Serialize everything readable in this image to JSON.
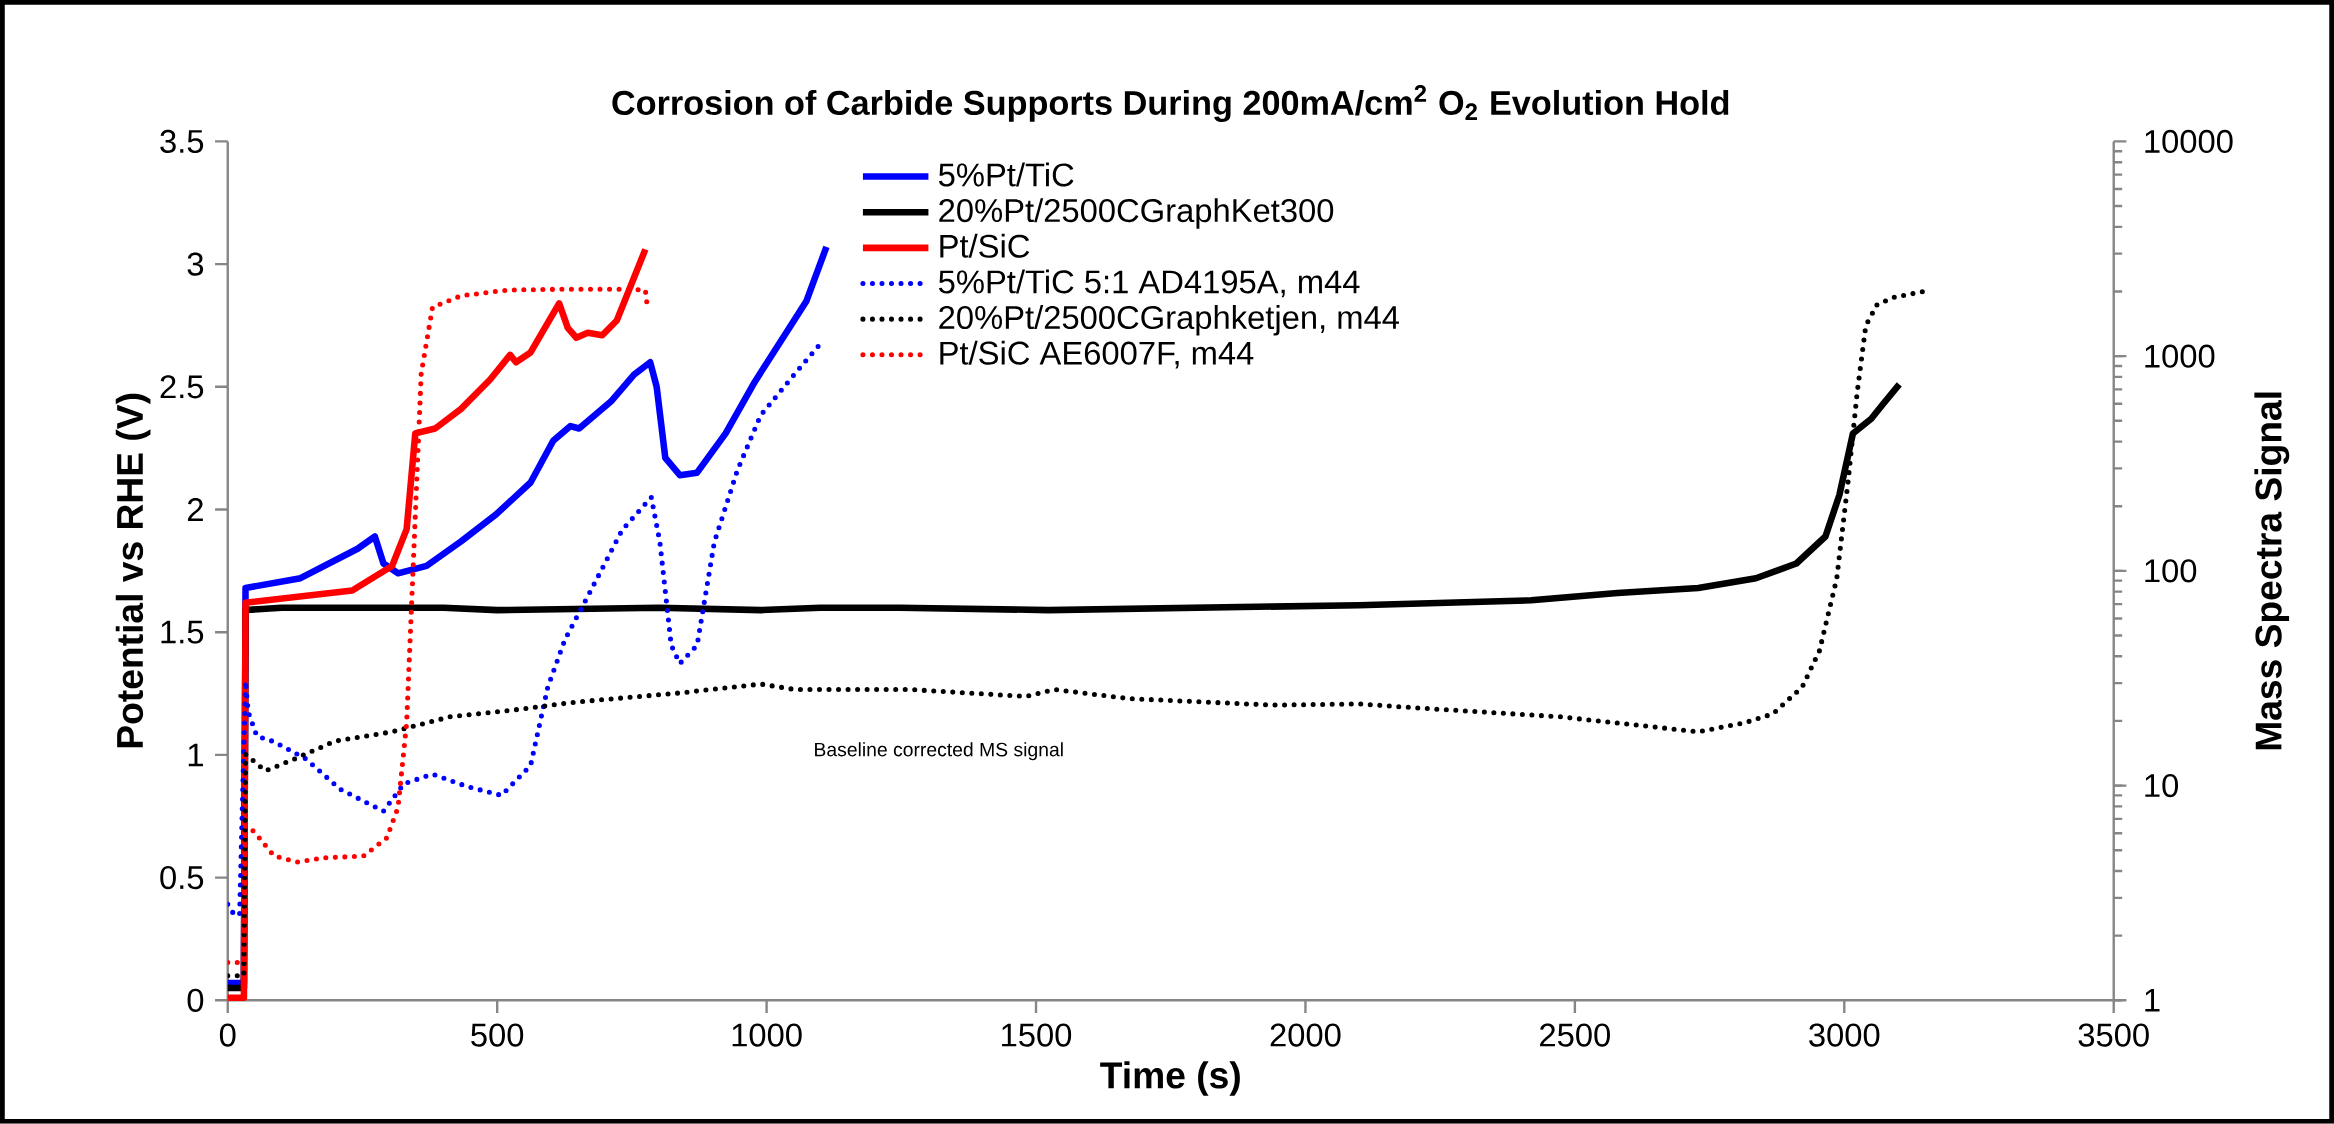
{
  "chart_data": {
    "type": "line",
    "title": "Corrosion of Carbide Supports During 200mA/cm$^{2}$ O$_{2}$ Evolution Hold",
    "xlabel": "Time (s)",
    "ylabel": "Potential vs RHE (V)",
    "y2label": "Mass Spectra Signal",
    "annotations": [
      "Baseline corrected MS signal"
    ],
    "xlim": [
      0,
      3500
    ],
    "xticks": [
      0,
      500,
      1000,
      1500,
      2000,
      2500,
      3000,
      3500
    ],
    "ylim": [
      0,
      3.5
    ],
    "yticks": [
      0,
      0.5,
      1,
      1.5,
      2,
      2.5,
      3,
      3.5
    ],
    "y2lim": [
      1,
      10000
    ],
    "y2ticks": [
      1,
      10,
      100,
      1000,
      10000
    ],
    "log": "y2",
    "legend": "top",
    "grid": false,
    "series": [
      {
        "name": "5%Pt/TiC",
        "color": "#0000ff",
        "line_style": "solid",
        "x": [
          0,
          30,
          33,
          135,
          241,
          273,
          289,
          316,
          369,
          433,
          498,
          562,
          604,
          636,
          652,
          711,
          754,
          784,
          796,
          812,
          839,
          871,
          924,
          978,
          1042,
          1074,
          1111
        ],
        "values": [
          0.07,
          0.07,
          1.68,
          1.72,
          1.84,
          1.89,
          1.78,
          1.74,
          1.77,
          1.87,
          1.98,
          2.11,
          2.28,
          2.34,
          2.33,
          2.44,
          2.55,
          2.6,
          2.5,
          2.21,
          2.14,
          2.15,
          2.31,
          2.52,
          2.74,
          2.85,
          3.07
        ]
      },
      {
        "name": "20%Pt/2500CGraphKet300",
        "color": "#000000",
        "line_style": "solid",
        "x": [
          0,
          30,
          33,
          100,
          400,
          500,
          800,
          990,
          1100,
          1246,
          1523,
          2099,
          2419,
          2579,
          2729,
          2836,
          2911,
          2965,
          2991,
          3016,
          3050,
          3072,
          3102
        ],
        "values": [
          0.05,
          0.05,
          1.59,
          1.6,
          1.6,
          1.59,
          1.6,
          1.59,
          1.6,
          1.6,
          1.59,
          1.61,
          1.63,
          1.66,
          1.68,
          1.72,
          1.78,
          1.89,
          2.06,
          2.31,
          2.37,
          2.43,
          2.51
        ]
      },
      {
        "name": "Pt/SiC",
        "color": "#ff0000",
        "line_style": "solid",
        "x": [
          0,
          30,
          33,
          231,
          305,
          332,
          348,
          385,
          433,
          487,
          524,
          535,
          562,
          615,
          631,
          647,
          668,
          695,
          722,
          775
        ],
        "values": [
          0.01,
          0.01,
          1.62,
          1.67,
          1.77,
          1.92,
          2.31,
          2.33,
          2.41,
          2.53,
          2.63,
          2.6,
          2.64,
          2.84,
          2.74,
          2.7,
          2.72,
          2.71,
          2.77,
          3.06
        ]
      },
      {
        "name": "5%Pt/TiC 5:1 AD4195A, m44",
        "color": "#0000ff",
        "line_style": "dotted",
        "axis": "y2",
        "x": [
          0,
          12,
          22,
          33,
          38,
          54,
          86,
          145,
          209,
          289,
          327,
          380,
          444,
          508,
          562,
          594,
          626,
          668,
          732,
          786,
          802,
          823,
          839,
          871,
          903,
          946,
          989,
          1053,
          1101
        ],
        "values": [
          2.8,
          2.5,
          2.5,
          30.7,
          22,
          17,
          16,
          13.3,
          9.6,
          7.6,
          10.2,
          11.3,
          9.9,
          9,
          12.4,
          28.8,
          48,
          76,
          155,
          220,
          136,
          45,
          37,
          45,
          136,
          295,
          530,
          830,
          1150
        ]
      },
      {
        "name": "20%Pt/2500CGraphketjen, m44",
        "color": "#000000",
        "line_style": "dotted",
        "axis": "y2",
        "x": [
          0,
          30,
          33,
          70,
          124,
          199,
          305,
          412,
          519,
          647,
          839,
          989,
          1053,
          1266,
          1481,
          1534,
          1673,
          1939,
          2099,
          2206,
          2473,
          2729,
          2815,
          2868,
          2922,
          2954,
          2986,
          3007,
          3024,
          3040,
          3061,
          3093,
          3147
        ],
        "values": [
          1.3,
          1.3,
          14,
          11.7,
          13.3,
          16.1,
          17.8,
          20.9,
          22.3,
          24.5,
          27,
          29.7,
          28,
          28,
          26,
          28,
          25.4,
          23.7,
          24,
          23,
          20.9,
          17.8,
          19.6,
          21.6,
          28.8,
          42.5,
          92,
          260,
          680,
          1390,
          1740,
          1880,
          2000
        ]
      },
      {
        "name": "Pt/SiC AE6007F, m44",
        "color": "#ff0000",
        "line_style": "dotted",
        "axis": "y2",
        "x": [
          0,
          30,
          33,
          49,
          86,
          129,
          177,
          252,
          295,
          316,
          332,
          346,
          359,
          380,
          433,
          519,
          626,
          732,
          775,
          778
        ],
        "values": [
          1.5,
          1.5,
          6.5,
          6.1,
          4.7,
          4.4,
          4.6,
          4.7,
          5.7,
          7.9,
          19.6,
          136,
          830,
          1690,
          1910,
          2030,
          2050,
          2050,
          2030,
          1750
        ]
      }
    ]
  }
}
